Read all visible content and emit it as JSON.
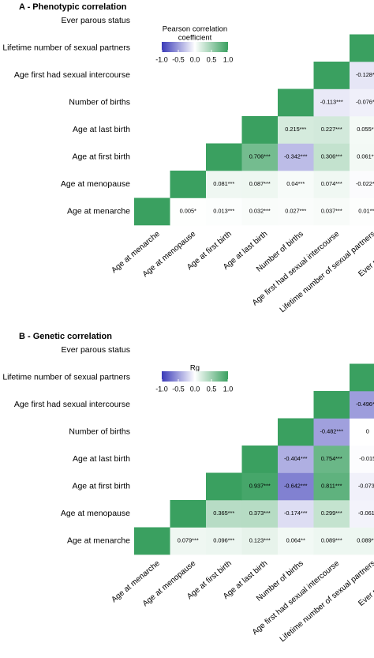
{
  "chart_data": [
    {
      "type": "heatmap",
      "title": "A - Phenotypic correlation",
      "legend_title": "Pearson correlation coefficient",
      "legend_title_lines": [
        "Pearson correlation",
        "coefficient"
      ],
      "legend_ticks": [
        "-1.0",
        "-0.5",
        "0.0",
        "0.5",
        "1.0"
      ],
      "legend_range": [
        -1,
        1
      ],
      "legend_placement": "top-left",
      "colors": {
        "negative": "#3a3ab8",
        "zero": "#ffffff",
        "positive": "#3aa060"
      },
      "variables": [
        "Age at menarche",
        "Age at menopause",
        "Age at first birth",
        "Age at last birth",
        "Number of births",
        "Age first had sexual intercourse",
        "Lifetime number of sexual partners",
        "Ever parous status"
      ],
      "cells": [
        {
          "row": 0,
          "col": 0,
          "value": 1
        },
        {
          "row": 0,
          "col": 1,
          "value": 0.005,
          "label": "0.005*"
        },
        {
          "row": 0,
          "col": 2,
          "value": 0.013,
          "label": "0.013***"
        },
        {
          "row": 0,
          "col": 3,
          "value": 0.032,
          "label": "0.032***"
        },
        {
          "row": 0,
          "col": 4,
          "value": 0.027,
          "label": "0.027***"
        },
        {
          "row": 0,
          "col": 5,
          "value": 0.037,
          "label": "0.037***"
        },
        {
          "row": 0,
          "col": 6,
          "value": 0.01,
          "label": "0.01***"
        },
        {
          "row": 0,
          "col": 7,
          "value": 0.02,
          "label": "0.02***"
        },
        {
          "row": 1,
          "col": 1,
          "value": 1
        },
        {
          "row": 1,
          "col": 2,
          "value": 0.081,
          "label": "0.081***"
        },
        {
          "row": 1,
          "col": 3,
          "value": 0.087,
          "label": "0.087***"
        },
        {
          "row": 1,
          "col": 4,
          "value": 0.04,
          "label": "0.04***"
        },
        {
          "row": 1,
          "col": 5,
          "value": 0.074,
          "label": "0.074***"
        },
        {
          "row": 1,
          "col": 6,
          "value": -0.022,
          "label": "-0.022***"
        },
        {
          "row": 1,
          "col": 7,
          "value": 0.049,
          "label": "0.049***"
        },
        {
          "row": 2,
          "col": 2,
          "value": 1
        },
        {
          "row": 2,
          "col": 3,
          "value": 0.706,
          "label": "0.706***"
        },
        {
          "row": 2,
          "col": 4,
          "value": -0.342,
          "label": "-0.342***"
        },
        {
          "row": 2,
          "col": 5,
          "value": 0.306,
          "label": "0.306***"
        },
        {
          "row": 2,
          "col": 6,
          "value": 0.061,
          "label": "0.061***"
        },
        {
          "row": 2,
          "col": 7,
          "value": null,
          "label": "NA"
        },
        {
          "row": 3,
          "col": 3,
          "value": 1
        },
        {
          "row": 3,
          "col": 4,
          "value": 0.215,
          "label": "0.215***"
        },
        {
          "row": 3,
          "col": 5,
          "value": 0.227,
          "label": "0.227***"
        },
        {
          "row": 3,
          "col": 6,
          "value": 0.055,
          "label": "0.055***"
        },
        {
          "row": 3,
          "col": 7,
          "value": null,
          "label": "NA"
        },
        {
          "row": 4,
          "col": 4,
          "value": 1
        },
        {
          "row": 4,
          "col": 5,
          "value": -0.113,
          "label": "-0.113***"
        },
        {
          "row": 4,
          "col": 6,
          "value": -0.076,
          "label": "-0.076***"
        },
        {
          "row": 4,
          "col": 7,
          "value": null,
          "label": "NA"
        },
        {
          "row": 5,
          "col": 5,
          "value": 1
        },
        {
          "row": 5,
          "col": 6,
          "value": -0.128,
          "label": "-0.128***"
        },
        {
          "row": 5,
          "col": 7,
          "value": -0.124,
          "label": "-0.124***"
        },
        {
          "row": 6,
          "col": 6,
          "value": 1
        },
        {
          "row": 6,
          "col": 7,
          "value": -0.074,
          "label": "-0.074***"
        },
        {
          "row": 7,
          "col": 7,
          "value": 1
        }
      ]
    },
    {
      "type": "heatmap",
      "title": "B - Genetic correlation",
      "legend_title": "Rg",
      "legend_title_lines": [
        "Rg"
      ],
      "legend_ticks": [
        "-1.0",
        "-0.5",
        "0.0",
        "0.5",
        "1.0"
      ],
      "legend_range": [
        -1,
        1
      ],
      "legend_placement": "top-left",
      "colors": {
        "negative": "#3a3ab8",
        "zero": "#ffffff",
        "positive": "#3aa060"
      },
      "variables": [
        "Age at menarche",
        "Age at menopause",
        "Age at first birth",
        "Age at last birth",
        "Number of births",
        "Age first had sexual intercourse",
        "Lifetime number of sexual partners",
        "Ever parous status"
      ],
      "cells": [
        {
          "row": 0,
          "col": 0,
          "value": 1
        },
        {
          "row": 0,
          "col": 1,
          "value": 0.079,
          "label": "0.079***"
        },
        {
          "row": 0,
          "col": 2,
          "value": 0.096,
          "label": "0.096***"
        },
        {
          "row": 0,
          "col": 3,
          "value": 0.123,
          "label": "0.123***"
        },
        {
          "row": 0,
          "col": 4,
          "value": 0.064,
          "label": "0.064**"
        },
        {
          "row": 0,
          "col": 5,
          "value": 0.089,
          "label": "0.089***"
        },
        {
          "row": 0,
          "col": 6,
          "value": 0.089,
          "label": "0.089***"
        },
        {
          "row": 0,
          "col": 7,
          "value": 0.088,
          "label": "0.088**"
        },
        {
          "row": 1,
          "col": 1,
          "value": 1
        },
        {
          "row": 1,
          "col": 2,
          "value": 0.365,
          "label": "0.365***"
        },
        {
          "row": 1,
          "col": 3,
          "value": 0.373,
          "label": "0.373***"
        },
        {
          "row": 1,
          "col": 4,
          "value": -0.174,
          "label": "-0.174***"
        },
        {
          "row": 1,
          "col": 5,
          "value": 0.299,
          "label": "0.299***"
        },
        {
          "row": 1,
          "col": 6,
          "value": -0.061,
          "label": "-0.061*"
        },
        {
          "row": 1,
          "col": 7,
          "value": -0.198,
          "label": "-0.198***"
        },
        {
          "row": 2,
          "col": 2,
          "value": 1
        },
        {
          "row": 2,
          "col": 3,
          "value": 0.937,
          "label": "0.937***"
        },
        {
          "row": 2,
          "col": 4,
          "value": -0.642,
          "label": "-0.642***"
        },
        {
          "row": 2,
          "col": 5,
          "value": 0.811,
          "label": "0.811***"
        },
        {
          "row": 2,
          "col": 6,
          "value": -0.073,
          "label": "-0.073*"
        },
        {
          "row": 2,
          "col": 7,
          "value": -0.727,
          "label": "-0.727***"
        },
        {
          "row": 3,
          "col": 3,
          "value": 1
        },
        {
          "row": 3,
          "col": 4,
          "value": -0.404,
          "label": "-0.404***"
        },
        {
          "row": 3,
          "col": 5,
          "value": 0.754,
          "label": "0.754***"
        },
        {
          "row": 3,
          "col": 6,
          "value": -0.015,
          "label": "-0.015"
        },
        {
          "row": 3,
          "col": 7,
          "value": -0.586,
          "label": "-0.586***"
        },
        {
          "row": 4,
          "col": 4,
          "value": 1
        },
        {
          "row": 4,
          "col": 5,
          "value": -0.482,
          "label": "-0.482***"
        },
        {
          "row": 4,
          "col": 6,
          "value": 0,
          "label": "0"
        },
        {
          "row": 4,
          "col": 7,
          "value": 0.914,
          "label": "0.914***"
        },
        {
          "row": 5,
          "col": 5,
          "value": 1
        },
        {
          "row": 5,
          "col": 6,
          "value": -0.496,
          "label": "-0.496***"
        },
        {
          "row": 5,
          "col": 7,
          "value": -0.591,
          "label": "-0.591***"
        },
        {
          "row": 6,
          "col": 6,
          "value": 1
        },
        {
          "row": 6,
          "col": 7,
          "value": -0.006,
          "label": "-0.006"
        },
        {
          "row": 7,
          "col": 7,
          "value": 1
        }
      ]
    }
  ]
}
